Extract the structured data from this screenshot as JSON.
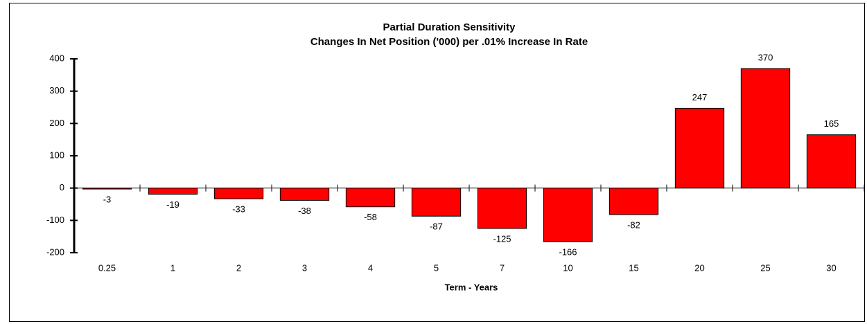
{
  "chart_data": {
    "type": "bar",
    "title": "Partial Duration Sensitivity",
    "subtitle": "Changes In Net Position ('000) per .01% Increase In Rate",
    "x_label": "Term - Years",
    "categories": [
      "0.25",
      "1",
      "2",
      "3",
      "4",
      "5",
      "7",
      "10",
      "15",
      "20",
      "25",
      "30"
    ],
    "values": [
      -3,
      -19,
      -33,
      -38,
      -58,
      -87,
      -125,
      -166,
      -82,
      247,
      370,
      165
    ],
    "color": "#ff0000",
    "ylim": [
      -200,
      400
    ],
    "yticks": [
      -200,
      -100,
      0,
      100,
      200,
      300,
      400
    ],
    "grid": false
  }
}
